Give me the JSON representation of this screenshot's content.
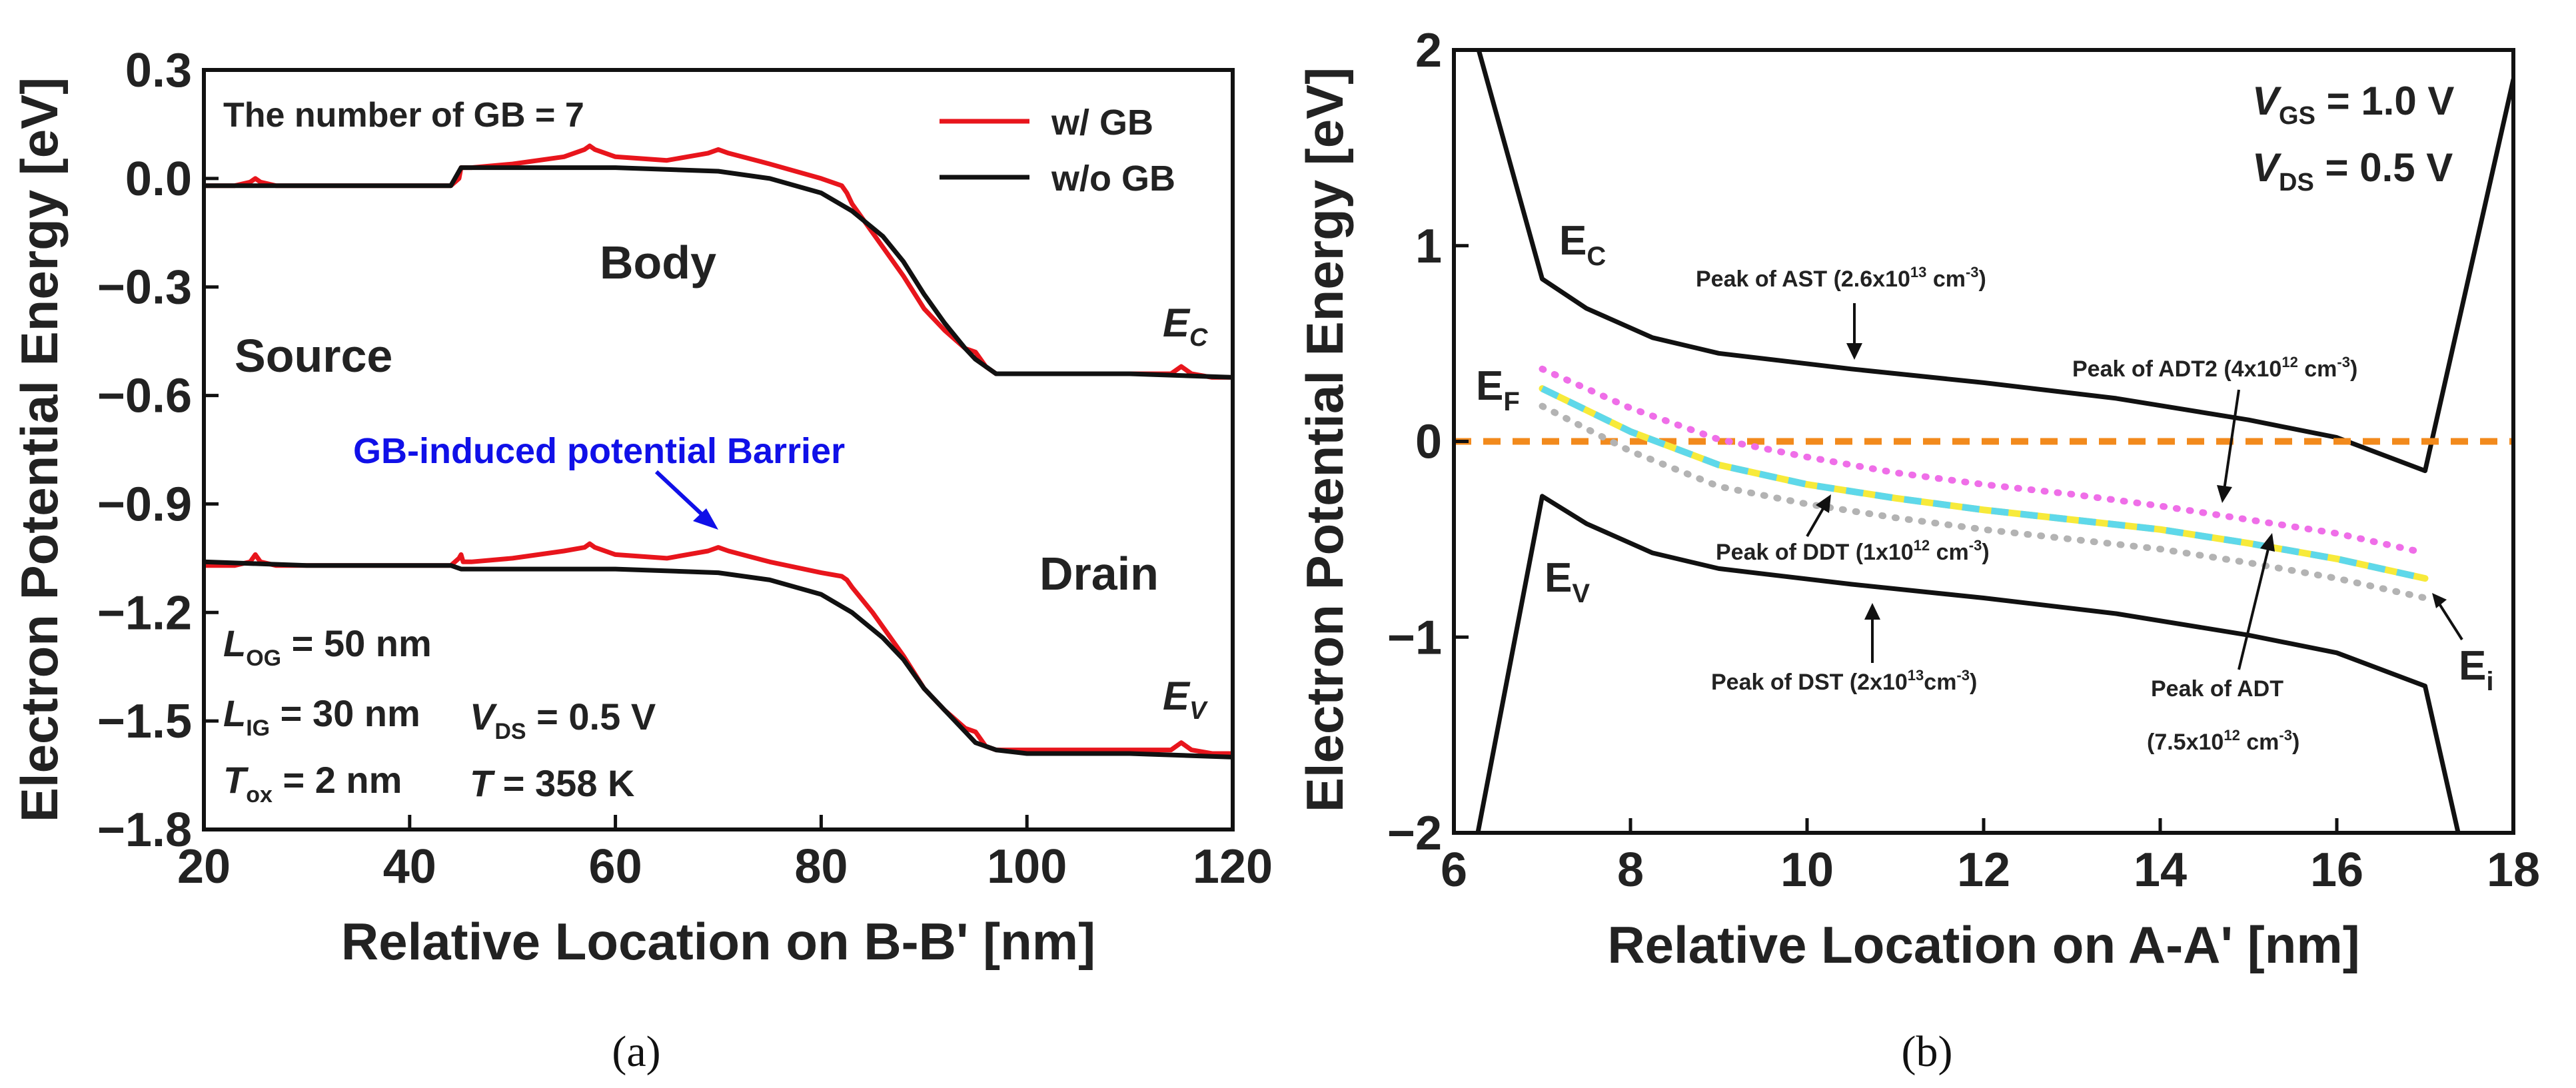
{
  "chart_data": [
    {
      "id": "a",
      "type": "line",
      "panel_label": "(a)",
      "xlabel": "Relative Location on B-B' [nm]",
      "ylabel": "Electron Potential Energy [eV]",
      "xlim": [
        20,
        120
      ],
      "ylim": [
        -1.8,
        0.3
      ],
      "xticks": [
        "20",
        "40",
        "60",
        "80",
        "100",
        "120"
      ],
      "yticks": [
        "0.3",
        "0.0",
        "−0.3",
        "−0.6",
        "−0.9",
        "−1.2",
        "−1.5",
        "−1.8"
      ],
      "xtick_values": [
        20,
        40,
        60,
        80,
        100,
        120
      ],
      "ytick_values": [
        0.3,
        0.0,
        -0.3,
        -0.6,
        -0.9,
        -1.2,
        -1.5,
        -1.8
      ],
      "legend": [
        "w/ GB",
        "w/o GB"
      ],
      "annotations": {
        "gb_count": "The number of GB = 7",
        "body": "Body",
        "source": "Source",
        "drain": "Drain",
        "barrier": "GB-induced potential Barrier",
        "ec": "E",
        "ec_sub": "C",
        "ev": "E",
        "ev_sub": "V",
        "log": "L",
        "log_sub": "OG",
        "log_val": " = 50 nm",
        "lig": "L",
        "lig_sub": "IG",
        "lig_val": " = 30 nm",
        "tox": "T",
        "tox_sub": "ox",
        "tox_val": " = 2 nm",
        "vds": "V",
        "vds_sub": "DS",
        "vds_val": " = 0.5 V",
        "temp": "T",
        "temp_val": " = 358 K"
      },
      "series": [
        {
          "name": "w/ GB",
          "color": "#e8151c",
          "x": [
            20,
            23,
            24.5,
            25,
            25.5,
            27,
            35,
            44,
            44.8,
            45,
            45.2,
            46,
            50,
            55,
            57,
            57.5,
            58,
            60,
            65,
            69,
            70,
            71,
            75,
            80,
            82,
            82.5,
            83,
            85,
            88,
            90,
            92,
            94,
            95,
            95.5,
            96,
            97,
            100,
            105,
            110,
            114,
            115,
            116,
            118,
            120
          ],
          "y": [
            -0.02,
            -0.02,
            -0.01,
            0.0,
            -0.01,
            -0.02,
            -0.02,
            -0.02,
            0.0,
            0.03,
            0.03,
            0.03,
            0.04,
            0.06,
            0.08,
            0.09,
            0.08,
            0.06,
            0.05,
            0.07,
            0.08,
            0.07,
            0.04,
            0.0,
            -0.02,
            -0.04,
            -0.07,
            -0.15,
            -0.27,
            -0.36,
            -0.42,
            -0.47,
            -0.48,
            -0.5,
            -0.52,
            -0.54,
            -0.54,
            -0.54,
            -0.54,
            -0.54,
            -0.52,
            -0.54,
            -0.55,
            -0.55
          ]
        },
        {
          "name": "w/o GB",
          "color": "#111111",
          "x": [
            20,
            30,
            44,
            45,
            50,
            60,
            70,
            75,
            80,
            83,
            86,
            88,
            90,
            92,
            94,
            95,
            96,
            97,
            100,
            110,
            120
          ],
          "y": [
            -0.02,
            -0.02,
            -0.02,
            0.03,
            0.03,
            0.03,
            0.02,
            0.0,
            -0.04,
            -0.09,
            -0.16,
            -0.23,
            -0.32,
            -0.4,
            -0.47,
            -0.5,
            -0.52,
            -0.54,
            -0.54,
            -0.54,
            -0.55
          ]
        },
        {
          "name": "w/ GB (Ev)",
          "color": "#e8151c",
          "x": [
            20,
            23,
            24.5,
            25,
            25.5,
            27,
            35,
            44,
            44.8,
            45,
            45.2,
            46,
            50,
            55,
            57,
            57.5,
            58,
            60,
            65,
            69,
            70,
            71,
            75,
            80,
            82,
            82.5,
            83,
            85,
            88,
            90,
            92,
            94,
            95,
            95.5,
            96,
            97,
            100,
            105,
            110,
            114,
            115,
            116,
            118,
            120
          ],
          "y": [
            -1.07,
            -1.07,
            -1.06,
            -1.04,
            -1.06,
            -1.07,
            -1.07,
            -1.07,
            -1.05,
            -1.04,
            -1.06,
            -1.06,
            -1.05,
            -1.03,
            -1.02,
            -1.01,
            -1.02,
            -1.04,
            -1.05,
            -1.03,
            -1.02,
            -1.03,
            -1.06,
            -1.09,
            -1.1,
            -1.11,
            -1.13,
            -1.2,
            -1.32,
            -1.41,
            -1.47,
            -1.52,
            -1.53,
            -1.55,
            -1.57,
            -1.58,
            -1.58,
            -1.58,
            -1.58,
            -1.58,
            -1.56,
            -1.58,
            -1.59,
            -1.59
          ]
        },
        {
          "name": "w/o GB (Ev)",
          "color": "#111111",
          "x": [
            20,
            30,
            44,
            45,
            50,
            60,
            70,
            75,
            80,
            83,
            86,
            88,
            90,
            92,
            94,
            95,
            96,
            97,
            100,
            110,
            120
          ],
          "y": [
            -1.06,
            -1.07,
            -1.07,
            -1.08,
            -1.08,
            -1.08,
            -1.09,
            -1.11,
            -1.15,
            -1.2,
            -1.27,
            -1.33,
            -1.41,
            -1.47,
            -1.53,
            -1.56,
            -1.57,
            -1.58,
            -1.59,
            -1.59,
            -1.6
          ]
        }
      ]
    },
    {
      "id": "b",
      "type": "line",
      "panel_label": "(b)",
      "xlabel": "Relative Location on A-A' [nm]",
      "ylabel": "Electron Potential Energy [eV]",
      "xlim": [
        6,
        18
      ],
      "ylim": [
        -2,
        2
      ],
      "xticks": [
        "6",
        "8",
        "10",
        "12",
        "14",
        "16",
        "18"
      ],
      "yticks": [
        "2",
        "1",
        "0",
        "−1",
        "−2"
      ],
      "xtick_values": [
        6,
        8,
        10,
        12,
        14,
        16,
        18
      ],
      "ytick_values": [
        2,
        1,
        0,
        -1,
        -2
      ],
      "annotations": {
        "vgs": "V",
        "vgs_sub": "GS",
        "vgs_val": " = 1.0 V",
        "vds": "V",
        "vds_sub": "DS",
        "vds_val": " = 0.5 V",
        "ec": "E",
        "ec_sub": "C",
        "ef": "E",
        "ef_sub": "F",
        "ev": "E",
        "ev_sub": "V",
        "ei": "E",
        "ei_sub": "i",
        "ast": "Peak of AST (2.6x10",
        "ast_exp": "13",
        "ast_tail": " cm",
        "ast_tail_exp": "-3",
        "ast_end": ")",
        "adt2": "Peak of ADT2  (4x10",
        "adt2_exp": "12",
        "adt2_tail": " cm",
        "adt2_tail_exp": "-3",
        "adt2_end": ")",
        "ddt": "Peak of DDT  (1x10",
        "ddt_exp": "12",
        "ddt_tail": " cm",
        "ddt_tail_exp": "-3",
        "ddt_end": ")",
        "dst": "Peak of DST (2x10",
        "dst_exp": "13",
        "dst_tail": "cm",
        "dst_tail_exp": "-3",
        "dst_end": ")",
        "adt": "Peak of ADT",
        "adt_val": "(7.5x10",
        "adt_val_exp": "12",
        "adt_val_tail": " cm",
        "adt_val_tail_exp": "-3",
        "adt_val_end": ")"
      },
      "series": [
        {
          "name": "Ec",
          "color": "#111111",
          "x": [
            6.25,
            7.0,
            7.5,
            8.25,
            9.0,
            10.5,
            12.0,
            13.5,
            15.0,
            16.0,
            17.0,
            18.0
          ],
          "y": [
            2.05,
            0.83,
            0.68,
            0.53,
            0.45,
            0.37,
            0.3,
            0.22,
            0.11,
            0.02,
            -0.15,
            1.85
          ]
        },
        {
          "name": "Ev",
          "color": "#111111",
          "x": [
            6.25,
            7.0,
            7.5,
            8.25,
            9.0,
            10.5,
            12.0,
            13.5,
            15.0,
            16.0,
            17.0,
            17.4
          ],
          "y": [
            -2.05,
            -0.28,
            -0.42,
            -0.57,
            -0.65,
            -0.73,
            -0.8,
            -0.88,
            -0.99,
            -1.08,
            -1.25,
            -2.05
          ]
        },
        {
          "name": "Ef",
          "color": "#f28a1c",
          "dash": "dash",
          "x": [
            6.0,
            18.0
          ],
          "y": [
            0.0,
            0.0
          ]
        },
        {
          "name": "ADT",
          "color": "#f7ea3a",
          "dash": "solid-thick",
          "x": [
            7.0,
            8.0,
            9.0,
            10.0,
            11.0,
            12.0,
            13.0,
            14.0,
            15.0,
            16.0,
            17.0
          ],
          "y": [
            0.27,
            0.05,
            -0.12,
            -0.22,
            -0.29,
            -0.35,
            -0.4,
            -0.45,
            -0.52,
            -0.6,
            -0.7
          ]
        },
        {
          "name": "ADT-cyan",
          "color": "#5ed8ea",
          "dash": "dash",
          "x": [
            7.0,
            8.0,
            9.0,
            10.0,
            11.0,
            12.0,
            13.0,
            14.0,
            15.0,
            16.0,
            17.0
          ],
          "y": [
            0.27,
            0.05,
            -0.12,
            -0.22,
            -0.29,
            -0.35,
            -0.4,
            -0.45,
            -0.52,
            -0.6,
            -0.7
          ]
        },
        {
          "name": "ADT2",
          "color": "#ef6ee8",
          "dash": "dot",
          "x": [
            7.0,
            8.0,
            9.0,
            10.0,
            11.0,
            12.0,
            13.0,
            14.0,
            15.0,
            16.0,
            17.0
          ],
          "y": [
            0.37,
            0.17,
            0.01,
            -0.08,
            -0.16,
            -0.22,
            -0.27,
            -0.33,
            -0.4,
            -0.47,
            -0.57
          ]
        },
        {
          "name": "DDT",
          "color": "#b3b3b3",
          "dash": "dot",
          "x": [
            7.0,
            8.0,
            9.0,
            10.0,
            11.0,
            12.0,
            13.0,
            14.0,
            15.0,
            16.0,
            17.0
          ],
          "y": [
            0.18,
            -0.05,
            -0.23,
            -0.32,
            -0.39,
            -0.45,
            -0.5,
            -0.55,
            -0.62,
            -0.7,
            -0.8
          ]
        }
      ]
    }
  ]
}
